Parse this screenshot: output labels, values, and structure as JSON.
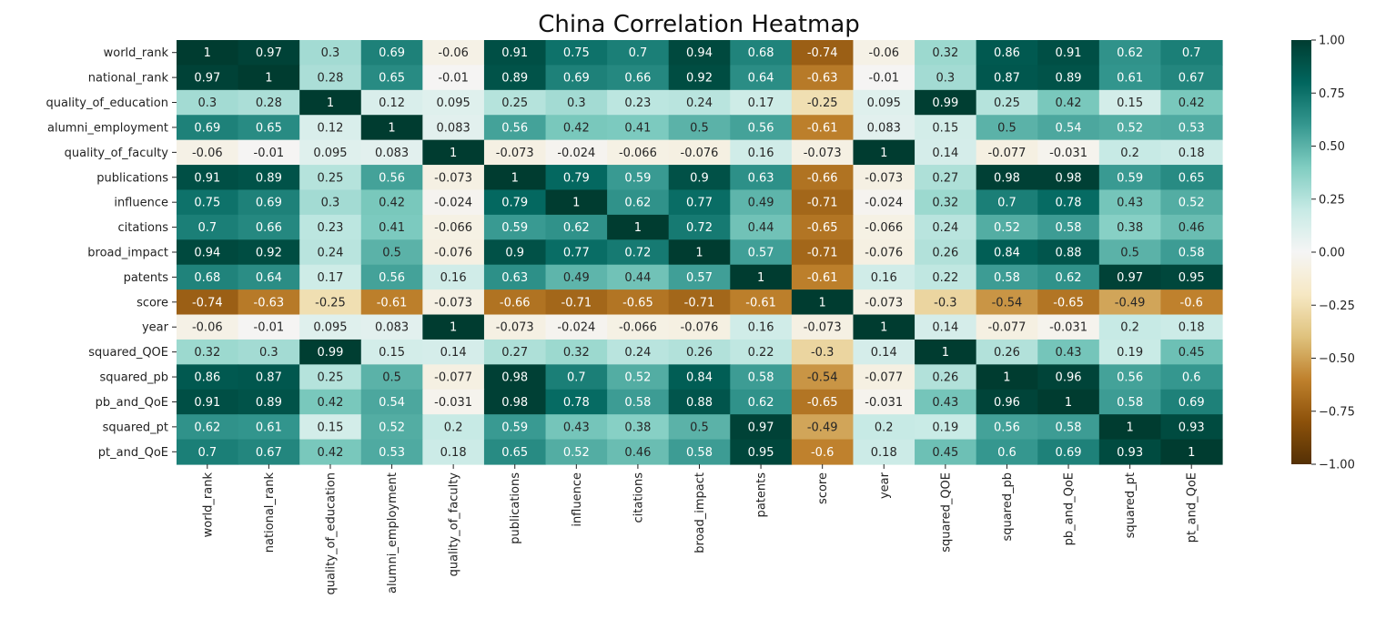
{
  "chart_data": {
    "type": "heatmap",
    "title": "China Correlation Heatmap",
    "rows": [
      "world_rank",
      "national_rank",
      "quality_of_education",
      "alumni_employment",
      "quality_of_faculty",
      "publications",
      "influence",
      "citations",
      "broad_impact",
      "patents",
      "score",
      "year",
      "squared_QOE",
      "squared_pb",
      "pb_and_QoE",
      "squared_pt",
      "pt_and_QoE"
    ],
    "columns": [
      "world_rank",
      "national_rank",
      "quality_of_education",
      "alumni_employment",
      "quality_of_faculty",
      "publications",
      "influence",
      "citations",
      "broad_impact",
      "patents",
      "score",
      "year",
      "squared_QOE",
      "squared_pb",
      "pb_and_QoE",
      "squared_pt",
      "pt_and_QoE"
    ],
    "values": [
      [
        1,
        0.97,
        0.3,
        0.69,
        -0.06,
        0.91,
        0.75,
        0.7,
        0.94,
        0.68,
        -0.74,
        -0.06,
        0.32,
        0.86,
        0.91,
        0.62,
        0.7
      ],
      [
        0.97,
        1,
        0.28,
        0.65,
        -0.01,
        0.89,
        0.69,
        0.66,
        0.92,
        0.64,
        -0.63,
        -0.01,
        0.3,
        0.87,
        0.89,
        0.61,
        0.67
      ],
      [
        0.3,
        0.28,
        1,
        0.12,
        0.095,
        0.25,
        0.3,
        0.23,
        0.24,
        0.17,
        -0.25,
        0.095,
        0.99,
        0.25,
        0.42,
        0.15,
        0.42
      ],
      [
        0.69,
        0.65,
        0.12,
        1,
        0.083,
        0.56,
        0.42,
        0.41,
        0.5,
        0.56,
        -0.61,
        0.083,
        0.15,
        0.5,
        0.54,
        0.52,
        0.53
      ],
      [
        -0.06,
        -0.01,
        0.095,
        0.083,
        1,
        -0.073,
        -0.024,
        -0.066,
        -0.076,
        0.16,
        -0.073,
        1,
        0.14,
        -0.077,
        -0.031,
        0.2,
        0.18
      ],
      [
        0.91,
        0.89,
        0.25,
        0.56,
        -0.073,
        1,
        0.79,
        0.59,
        0.9,
        0.63,
        -0.66,
        -0.073,
        0.27,
        0.98,
        0.98,
        0.59,
        0.65
      ],
      [
        0.75,
        0.69,
        0.3,
        0.42,
        -0.024,
        0.79,
        1,
        0.62,
        0.77,
        0.49,
        -0.71,
        -0.024,
        0.32,
        0.7,
        0.78,
        0.43,
        0.52
      ],
      [
        0.7,
        0.66,
        0.23,
        0.41,
        -0.066,
        0.59,
        0.62,
        1,
        0.72,
        0.44,
        -0.65,
        -0.066,
        0.24,
        0.52,
        0.58,
        0.38,
        0.46
      ],
      [
        0.94,
        0.92,
        0.24,
        0.5,
        -0.076,
        0.9,
        0.77,
        0.72,
        1,
        0.57,
        -0.71,
        -0.076,
        0.26,
        0.84,
        0.88,
        0.5,
        0.58
      ],
      [
        0.68,
        0.64,
        0.17,
        0.56,
        0.16,
        0.63,
        0.49,
        0.44,
        0.57,
        1,
        -0.61,
        0.16,
        0.22,
        0.58,
        0.62,
        0.97,
        0.95
      ],
      [
        -0.74,
        -0.63,
        -0.25,
        -0.61,
        -0.073,
        -0.66,
        -0.71,
        -0.65,
        -0.71,
        -0.61,
        1,
        -0.073,
        -0.3,
        -0.54,
        -0.65,
        -0.49,
        -0.6
      ],
      [
        -0.06,
        -0.01,
        0.095,
        0.083,
        1,
        -0.073,
        -0.024,
        -0.066,
        -0.076,
        0.16,
        -0.073,
        1,
        0.14,
        -0.077,
        -0.031,
        0.2,
        0.18
      ],
      [
        0.32,
        0.3,
        0.99,
        0.15,
        0.14,
        0.27,
        0.32,
        0.24,
        0.26,
        0.22,
        -0.3,
        0.14,
        1,
        0.26,
        0.43,
        0.19,
        0.45
      ],
      [
        0.86,
        0.87,
        0.25,
        0.5,
        -0.077,
        0.98,
        0.7,
        0.52,
        0.84,
        0.58,
        -0.54,
        -0.077,
        0.26,
        1,
        0.96,
        0.56,
        0.6
      ],
      [
        0.91,
        0.89,
        0.42,
        0.54,
        -0.031,
        0.98,
        0.78,
        0.58,
        0.88,
        0.62,
        -0.65,
        -0.031,
        0.43,
        0.96,
        1,
        0.58,
        0.69
      ],
      [
        0.62,
        0.61,
        0.15,
        0.52,
        0.2,
        0.59,
        0.43,
        0.38,
        0.5,
        0.97,
        -0.49,
        0.2,
        0.19,
        0.56,
        0.58,
        1,
        0.93
      ],
      [
        0.7,
        0.67,
        0.42,
        0.53,
        0.18,
        0.65,
        0.52,
        0.46,
        0.58,
        0.95,
        -0.6,
        0.18,
        0.45,
        0.6,
        0.69,
        0.93,
        1
      ]
    ],
    "colormap": "BrBG",
    "vmin": -1.0,
    "vmax": 1.0,
    "colorbar_ticks": [
      "1.00",
      "0.75",
      "0.50",
      "0.25",
      "0.00",
      "−0.25",
      "−0.50",
      "−0.75",
      "−1.00"
    ],
    "colorbar_tick_values": [
      1.0,
      0.75,
      0.5,
      0.25,
      0.0,
      -0.25,
      -0.5,
      -0.75,
      -1.0
    ],
    "annotations": true
  }
}
